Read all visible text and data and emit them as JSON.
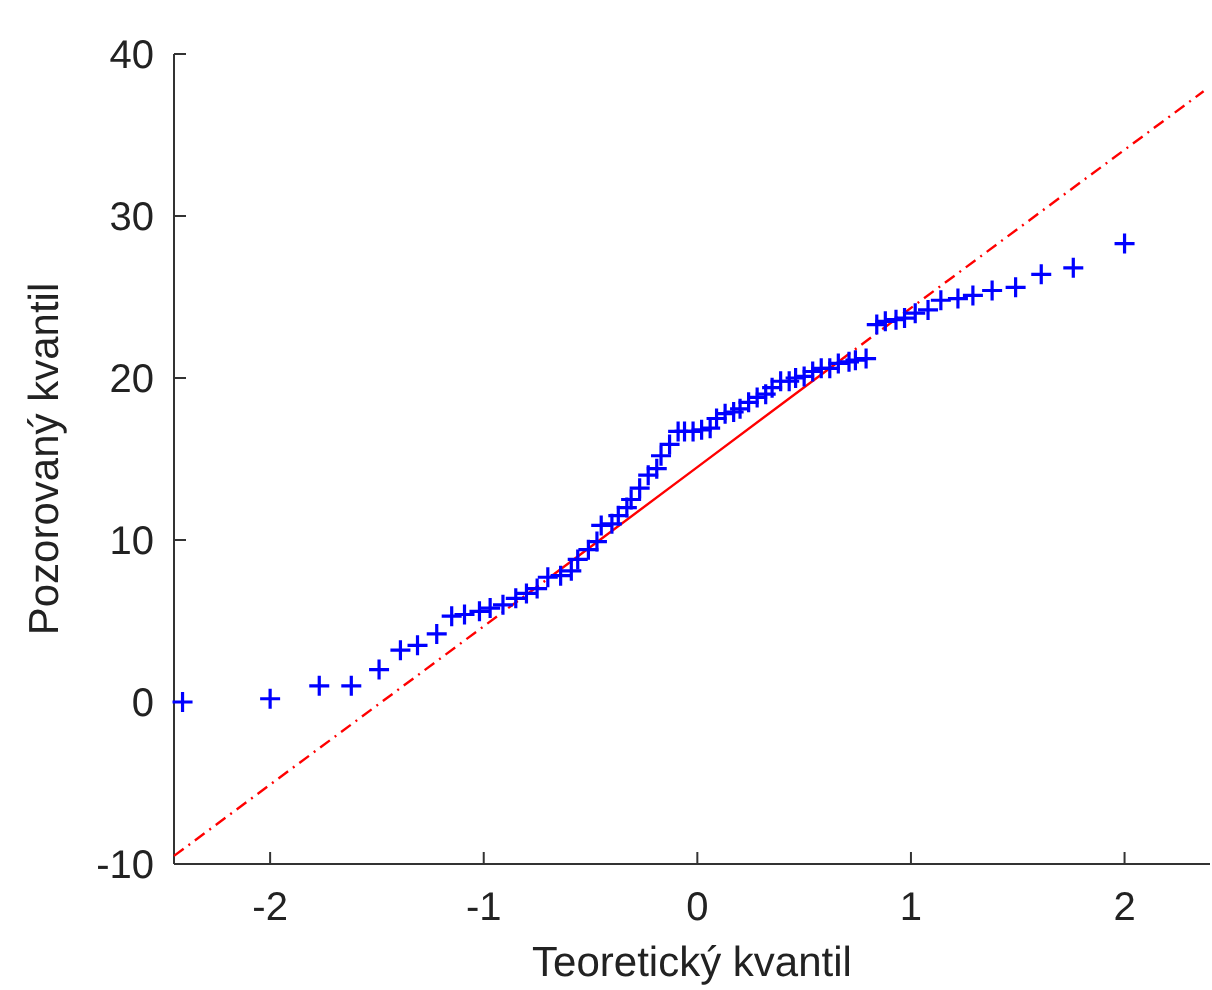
{
  "chart_data": {
    "type": "scatter",
    "xlabel": "Teoretický kvantil",
    "ylabel": "Pozorovaný kvantil",
    "xlim": [
      -2.45,
      2.4
    ],
    "ylim": [
      -10,
      40
    ],
    "xticks": [
      -2,
      -1,
      0,
      1,
      2
    ],
    "yticks": [
      -10,
      0,
      10,
      20,
      30,
      40
    ],
    "grid": false,
    "series": [
      {
        "type": "line",
        "color": "#ff0000",
        "line_style": "solid",
        "marker": "none",
        "x": [
          -0.67,
          0,
          0.67
        ],
        "values": [
          7.9,
          14.5,
          21.1
        ]
      },
      {
        "type": "line",
        "color": "#ff0000",
        "line_style": "dashed",
        "marker": "none",
        "x": [
          -2.45,
          -0.67,
          0,
          0.67,
          2.37
        ],
        "values": [
          -9.5,
          7.9,
          null,
          21.1,
          37.7
        ]
      },
      {
        "color": "#0000ff",
        "marker": "cross",
        "x": [
          -2.41,
          -2.0,
          -1.77,
          -1.62,
          -1.49,
          -1.39,
          -1.31,
          -1.22,
          -1.15,
          -1.09,
          -1.02,
          -0.97,
          -0.91,
          -0.85,
          -0.8,
          -0.75,
          -0.7,
          -0.64,
          -0.59,
          -0.56,
          -0.51,
          -0.47,
          -0.45,
          -0.4,
          -0.37,
          -0.33,
          -0.31,
          -0.27,
          -0.23,
          -0.19,
          -0.17,
          -0.13,
          -0.09,
          -0.06,
          -0.02,
          0.02,
          0.06,
          0.09,
          0.13,
          0.17,
          0.2,
          0.24,
          0.28,
          0.32,
          0.35,
          0.39,
          0.43,
          0.46,
          0.5,
          0.54,
          0.58,
          0.62,
          0.66,
          0.71,
          0.74,
          0.79,
          0.84,
          0.88,
          0.93,
          0.97,
          1.02,
          1.08,
          1.14,
          1.22,
          1.29,
          1.38,
          1.49,
          1.61,
          1.76,
          2.0
        ],
        "values": [
          0.0,
          0.2,
          1.0,
          1.0,
          2.0,
          3.2,
          3.5,
          4.2,
          5.3,
          5.4,
          5.6,
          5.8,
          6.0,
          6.4,
          6.7,
          7.0,
          7.7,
          7.8,
          8.1,
          8.8,
          9.4,
          9.9,
          10.9,
          11.0,
          11.5,
          12.0,
          12.5,
          13.2,
          14.0,
          14.4,
          15.2,
          15.9,
          16.7,
          16.7,
          16.7,
          16.8,
          16.9,
          17.5,
          17.8,
          17.9,
          18.1,
          18.5,
          18.8,
          19.0,
          19.4,
          19.8,
          19.8,
          20.0,
          20.1,
          20.4,
          20.6,
          20.6,
          20.9,
          21.0,
          21.1,
          21.2,
          23.3,
          23.5,
          23.6,
          23.7,
          24.0,
          24.2,
          24.8,
          24.9,
          25.1,
          25.4,
          25.6,
          26.4,
          26.8,
          28.3
        ]
      }
    ]
  }
}
